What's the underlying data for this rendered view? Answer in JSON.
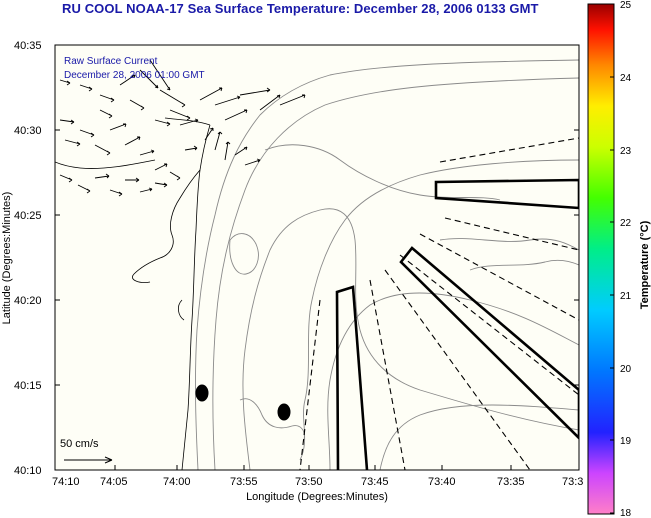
{
  "title": "RU COOL  NOAA-17  Sea Surface Temperature:  December 28, 2006 0133 GMT",
  "overlay": {
    "line1": "Raw Surface Current",
    "line2": "December 28, 2006 01:00 GMT"
  },
  "scale": {
    "label": "50 cm/s"
  },
  "axes": {
    "xlabel": "Longitude (Degrees:Minutes)",
    "ylabel": "Latitude (Degrees:Minutes)",
    "xticks": [
      "74:10",
      "74:05",
      "74:00",
      "73:55",
      "73:50",
      "73:45",
      "73:40",
      "73:35",
      "73:3"
    ],
    "yticks": [
      "40:35",
      "40:30",
      "40:25",
      "40:20",
      "40:15",
      "40:10"
    ]
  },
  "colorbar": {
    "title": "Temperature (°C)",
    "ticks": [
      "25",
      "24",
      "23",
      "22",
      "21",
      "20",
      "19",
      "18"
    ],
    "range": [
      18,
      25
    ]
  },
  "colors": {
    "title": "#1a1aa8",
    "overlay_text": "#1a1aa8",
    "background": "#ffffff",
    "map_fill": "#fefef6",
    "contour": "#8a8a8a",
    "features": "#000000"
  }
}
